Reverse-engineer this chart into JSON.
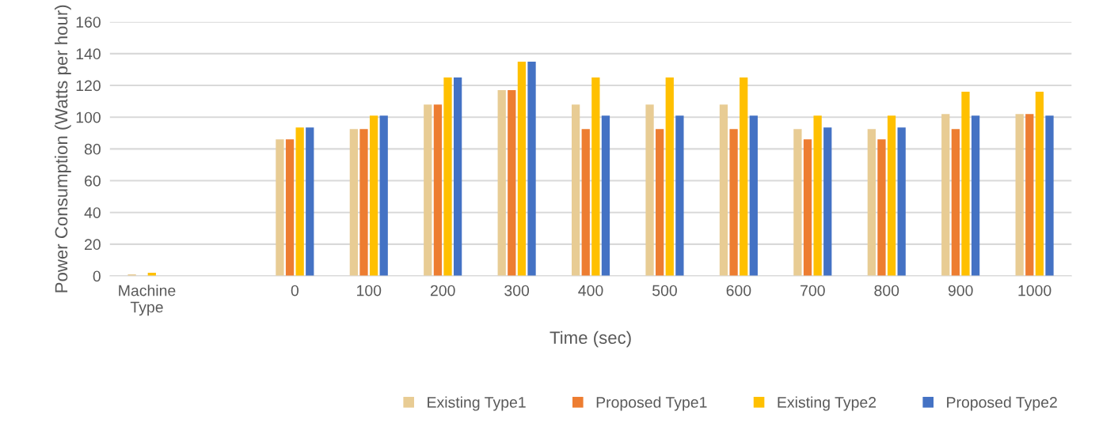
{
  "chart_data": {
    "type": "bar",
    "xlabel": "Time (sec)",
    "ylabel": "Power Consumption (Watts per hour)",
    "categories": [
      "Machine\nType",
      null,
      "0",
      "100",
      "200",
      "300",
      "400",
      "500",
      "600",
      "700",
      "800",
      "900",
      "1000"
    ],
    "series": [
      {
        "name": "Existing Type1",
        "color": "#e8cc94",
        "values": [
          1,
          0,
          86,
          92.5,
          108,
          117,
          108,
          108,
          108,
          92.5,
          92.5,
          102,
          102
        ]
      },
      {
        "name": "Proposed Type1",
        "color": "#ed7d31",
        "values": [
          0,
          0,
          86,
          92.5,
          108,
          117,
          92.5,
          92.5,
          92.5,
          86,
          86,
          92.5,
          102
        ]
      },
      {
        "name": "Existing Type2",
        "color": "#ffc000",
        "values": [
          2,
          0,
          93.5,
          101,
          125,
          135,
          125,
          125,
          125,
          101,
          101,
          116,
          116
        ]
      },
      {
        "name": "Proposed Type2",
        "color": "#4472c4",
        "values": [
          0,
          0,
          93.5,
          101,
          125,
          135,
          101,
          101,
          101,
          93.5,
          93.5,
          101,
          101
        ]
      }
    ],
    "ylim": [
      0,
      160
    ],
    "yticks": [
      0,
      20,
      40,
      60,
      80,
      100,
      120,
      140,
      160
    ],
    "grid": "y",
    "legend": "bottom right"
  }
}
